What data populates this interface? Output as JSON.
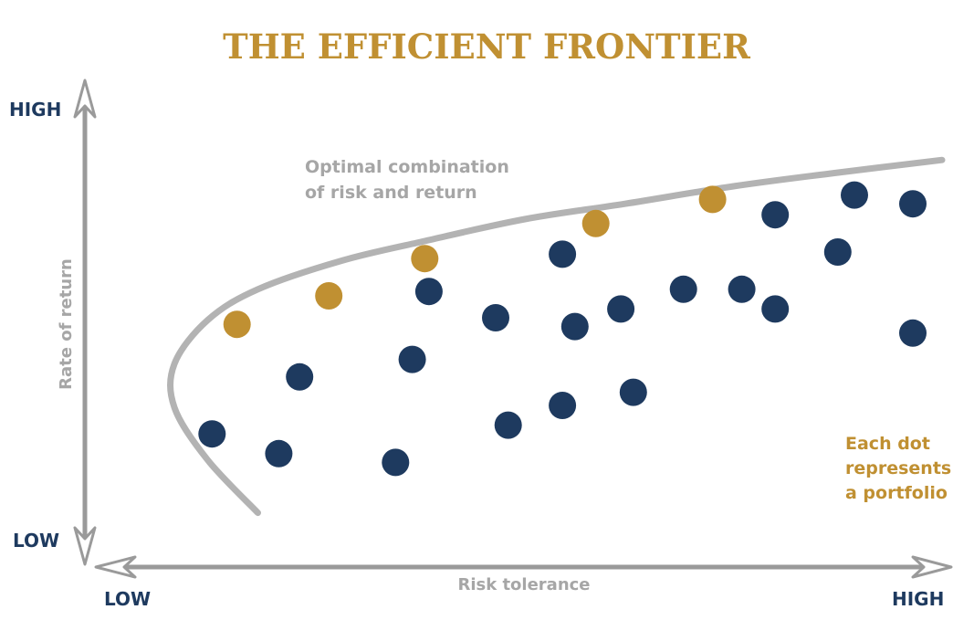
{
  "colors": {
    "title": "#C09032",
    "frontier_dot": "#C09032",
    "portfolio_dot": "#1E3A5F",
    "frontier_curve": "#B3B3B3",
    "axis": "#9A9A9A",
    "axis_label": "#A6A6A6",
    "axis_end_label": "#1E3A5F",
    "legend_note": "#C09032"
  },
  "chart_data": {
    "type": "scatter",
    "title": "THE EFFICIENT FRONTIER",
    "xlabel": "Risk tolerance",
    "ylabel": "Rate of return",
    "x_axis_ends": {
      "low": "LOW",
      "high": "HIGH"
    },
    "y_axis_ends": {
      "low": "LOW",
      "high": "HIGH"
    },
    "xlim": [
      0,
      100
    ],
    "ylim": [
      0,
      100
    ],
    "grid": false,
    "frontier_label": [
      "Optimal combination",
      "of risk and return"
    ],
    "legend_note": [
      "Each dot",
      "represents",
      "a portfolio"
    ],
    "frontier_curve": [
      [
        18,
        8
      ],
      [
        12,
        20
      ],
      [
        8,
        32
      ],
      [
        8,
        42
      ],
      [
        12,
        52
      ],
      [
        18,
        59
      ],
      [
        28,
        65.5
      ],
      [
        38,
        70
      ],
      [
        50,
        75
      ],
      [
        62,
        78.5
      ],
      [
        75,
        82.5
      ],
      [
        87,
        85.5
      ],
      [
        100,
        88.5
      ]
    ],
    "series": [
      {
        "name": "efficient",
        "points": [
          [
            15.5,
            51
          ],
          [
            26.5,
            57.5
          ],
          [
            38,
            66
          ],
          [
            58.5,
            74
          ],
          [
            72.5,
            79.5
          ]
        ]
      },
      {
        "name": "portfolios",
        "points": [
          [
            12.5,
            26
          ],
          [
            20.5,
            21.5
          ],
          [
            23,
            39
          ],
          [
            34.5,
            19.5
          ],
          [
            36.5,
            43
          ],
          [
            38.5,
            58.5
          ],
          [
            46.5,
            52.5
          ],
          [
            48,
            28
          ],
          [
            54.5,
            67
          ],
          [
            54.5,
            32.5
          ],
          [
            56,
            50.5
          ],
          [
            61.5,
            54.5
          ],
          [
            63,
            35.5
          ],
          [
            69,
            59
          ],
          [
            76,
            59
          ],
          [
            80,
            76
          ],
          [
            80,
            54.5
          ],
          [
            89.5,
            80.5
          ],
          [
            87.5,
            67.5
          ],
          [
            96.5,
            78.5
          ],
          [
            96.5,
            49
          ]
        ]
      }
    ]
  }
}
